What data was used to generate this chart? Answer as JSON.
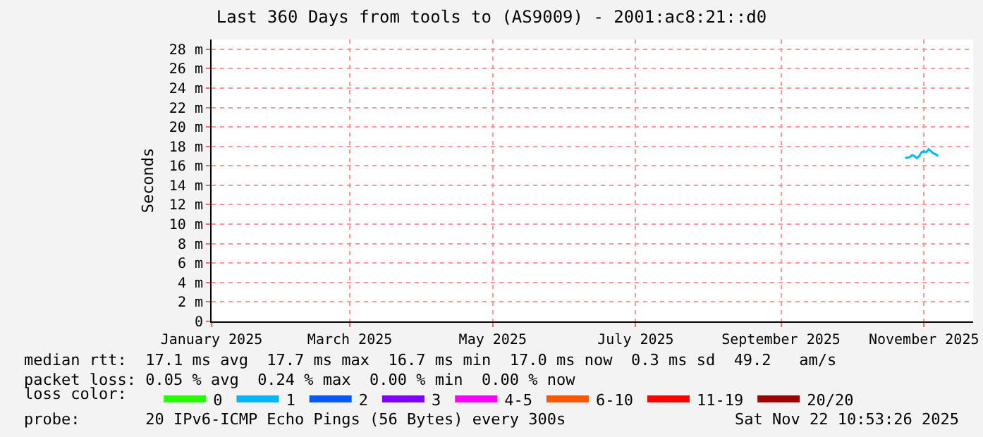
{
  "chart_data": {
    "type": "line",
    "title": "Last 360 Days from tools to (AS9009) - 2001:ac8:21::d0",
    "ylabel": "Seconds",
    "xlim": [
      "2025-01-01",
      "2025-11-22"
    ],
    "xticks": [
      {
        "value": "2025-01-01",
        "label": "January 2025"
      },
      {
        "value": "2025-03-01",
        "label": "March 2025"
      },
      {
        "value": "2025-05-01",
        "label": "May 2025"
      },
      {
        "value": "2025-07-01",
        "label": "July 2025"
      },
      {
        "value": "2025-09-01",
        "label": "September 2025"
      },
      {
        "value": "2025-11-01",
        "label": "November 2025"
      }
    ],
    "ylim": [
      0,
      29
    ],
    "yticks": [
      {
        "value": 0,
        "label": "0"
      },
      {
        "value": 2,
        "label": "2 m"
      },
      {
        "value": 4,
        "label": "4 m"
      },
      {
        "value": 6,
        "label": "6 m"
      },
      {
        "value": 8,
        "label": "8 m"
      },
      {
        "value": 10,
        "label": "10 m"
      },
      {
        "value": 12,
        "label": "12 m"
      },
      {
        "value": 14,
        "label": "14 m"
      },
      {
        "value": 16,
        "label": "16 m"
      },
      {
        "value": 18,
        "label": "18 m"
      },
      {
        "value": 20,
        "label": "20 m"
      },
      {
        "value": 22,
        "label": "22 m"
      },
      {
        "value": 24,
        "label": "24 m"
      },
      {
        "value": 26,
        "label": "26 m"
      },
      {
        "value": 28,
        "label": "28 m"
      }
    ],
    "grid": true,
    "legend": "bottom",
    "legend_title": "loss color:",
    "marker": "none",
    "line_style": "solid",
    "series": [
      {
        "color": "#00b8ff",
        "x": [
          "2025-10-24",
          "2025-10-26",
          "2025-10-27",
          "2025-10-28",
          "2025-10-29",
          "2025-10-30",
          "2025-10-31",
          "2025-11-01",
          "2025-11-02",
          "2025-11-03",
          "2025-11-04",
          "2025-11-05",
          "2025-11-06",
          "2025-11-07"
        ],
        "values": [
          16.8,
          16.9,
          17.1,
          17.0,
          16.8,
          17.0,
          17.4,
          17.5,
          17.4,
          17.7,
          17.5,
          17.3,
          17.2,
          17.0
        ]
      },
      {
        "name": "0",
        "color": "#26ff00",
        "values": [
          null
        ]
      },
      {
        "name": "1",
        "color": "#00b8ff",
        "values": [
          null
        ]
      },
      {
        "name": "2",
        "color": "#0059ff",
        "values": [
          null
        ]
      },
      {
        "name": "3",
        "color": "#7e00ff",
        "values": [
          null
        ]
      },
      {
        "name": "4-5",
        "color": "#ff00ff",
        "values": [
          null
        ]
      },
      {
        "name": "6-10",
        "color": "#ff5500",
        "values": [
          null
        ]
      },
      {
        "name": "11-19",
        "color": "#ff0000",
        "values": [
          null
        ]
      },
      {
        "name": "20/20",
        "color": "#a10000",
        "values": [
          null
        ]
      }
    ],
    "annotations": [
      "median rtt:  17.1 ms avg  17.7 ms max  16.7 ms min  17.0 ms now  0.3 ms sd  49.2   am/s",
      "packet loss: 0.05 % avg  0.24 % max  0.00 % min  0.00 % now",
      "probe:       20 IPv6-ICMP Echo Pings (56 Bytes) every 300s",
      "Sat Nov 22 10:53:26 2025"
    ]
  }
}
